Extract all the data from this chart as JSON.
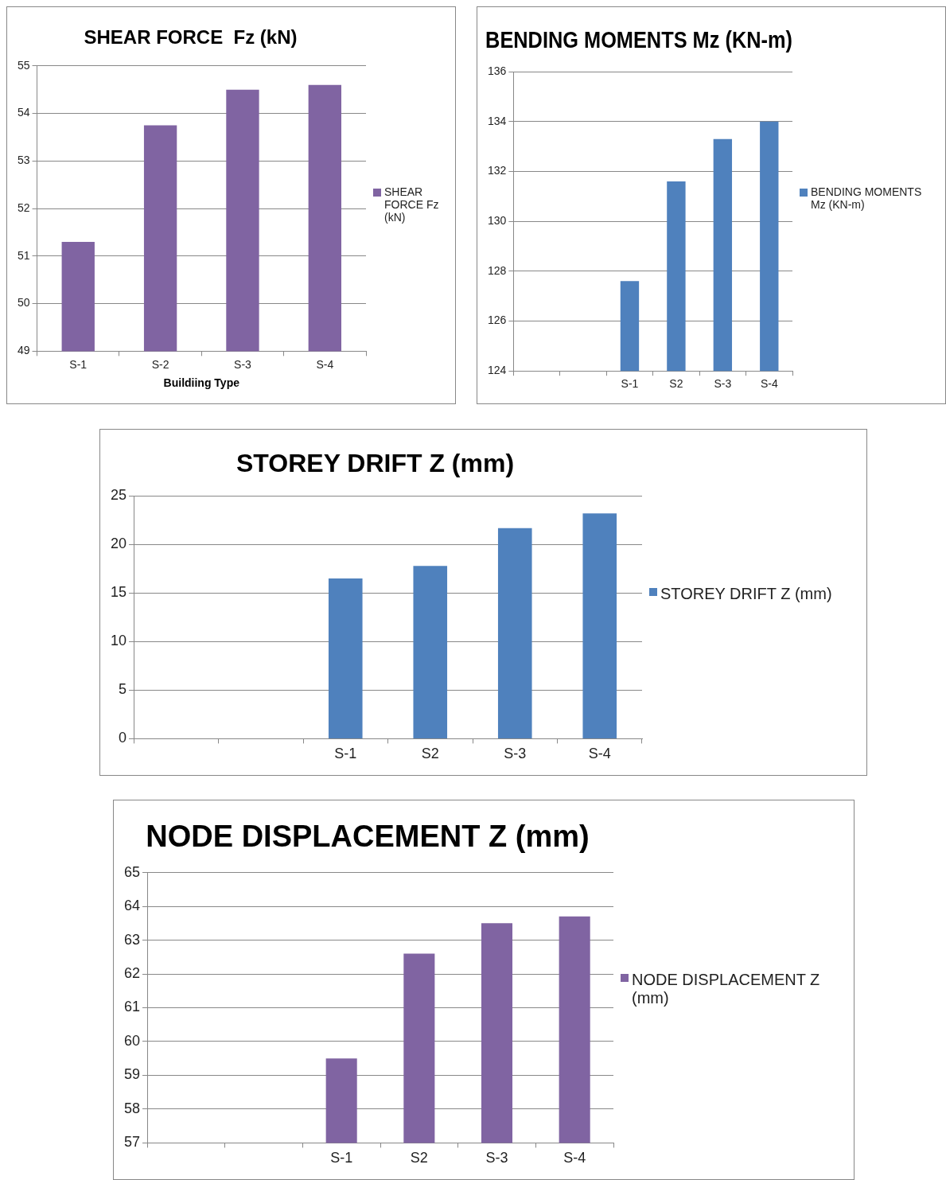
{
  "chart_data": [
    {
      "type": "bar",
      "title": "SHEAR FORCE  Fz (kN)",
      "xlabel": "Buildiing Type",
      "categories": [
        "S-1",
        "S-2",
        "S-3",
        "S-4"
      ],
      "series": [
        {
          "name": "SHEAR FORCE  Fz (kN)",
          "color": "#8064a2",
          "values": [
            51.3,
            53.75,
            54.5,
            54.6
          ]
        }
      ],
      "ylim": [
        49,
        55
      ],
      "yticks": [
        49,
        50,
        51,
        52,
        53,
        54,
        55
      ],
      "grid": "y",
      "legend": "right"
    },
    {
      "type": "bar",
      "title": "BENDING MOMENTS Mz (KN-m)",
      "categories": [
        null,
        null,
        "S-1",
        "S2",
        "S-3",
        "S-4"
      ],
      "series": [
        {
          "name": "BENDING MOMENTS Mz (KN-m)",
          "color": "#4f81bd",
          "values": [
            null,
            null,
            127.6,
            131.6,
            133.3,
            134.0
          ]
        }
      ],
      "ylim": [
        124,
        136
      ],
      "yticks": [
        124,
        126,
        128,
        130,
        132,
        134,
        136
      ],
      "grid": "y",
      "legend": "right"
    },
    {
      "type": "bar",
      "title": "STOREY DRIFT Z (mm)",
      "categories": [
        null,
        null,
        "S-1",
        "S2",
        "S-3",
        "S-4"
      ],
      "series": [
        {
          "name": "STOREY DRIFT Z (mm)",
          "color": "#4f81bd",
          "values": [
            null,
            null,
            16.5,
            17.8,
            21.7,
            23.2
          ]
        }
      ],
      "ylim": [
        0,
        25
      ],
      "yticks": [
        0,
        5,
        10,
        15,
        20,
        25
      ],
      "grid": "y",
      "legend": "right"
    },
    {
      "type": "bar",
      "title": "NODE DISPLACEMENT Z (mm)",
      "categories": [
        null,
        null,
        "S-1",
        "S2",
        "S-3",
        "S-4"
      ],
      "series": [
        {
          "name": "NODE DISPLACEMENT Z (mm)",
          "color": "#8064a2",
          "values": [
            null,
            null,
            59.5,
            62.6,
            63.5,
            63.7
          ]
        }
      ],
      "ylim": [
        57,
        65
      ],
      "yticks": [
        57,
        58,
        59,
        60,
        61,
        62,
        63,
        64,
        65
      ],
      "grid": "y",
      "legend": "right"
    }
  ]
}
